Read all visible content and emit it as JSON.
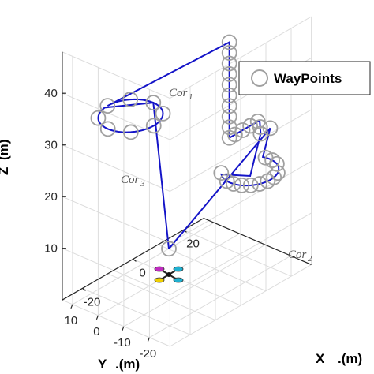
{
  "chart_data": {
    "type": "line",
    "title": "",
    "axes": {
      "x": {
        "label": "X",
        "unit": ".(m)",
        "ticks": [
          -20,
          0,
          20
        ]
      },
      "y": {
        "label": "Y",
        "unit": ".(m)",
        "ticks": [
          10,
          0,
          -10,
          -20
        ]
      },
      "z": {
        "label": "Z",
        "unit": "(m)",
        "ticks": [
          10,
          20,
          30,
          40
        ]
      }
    },
    "grid": true,
    "legend": {
      "position": "top-right",
      "entries": [
        "WayPoints"
      ]
    },
    "annotations": [
      {
        "name": "Cor",
        "sub": "1"
      },
      {
        "name": "Cor",
        "sub": "2"
      },
      {
        "name": "Cor",
        "sub": "3"
      }
    ],
    "colors": {
      "path": "#1414c8",
      "waypoints": "#a0a0a0",
      "grid": "#dcdcdc"
    },
    "series": [
      {
        "name": "WayPoints",
        "marker": "open-circle",
        "x": [],
        "y": [],
        "z": []
      }
    ]
  }
}
